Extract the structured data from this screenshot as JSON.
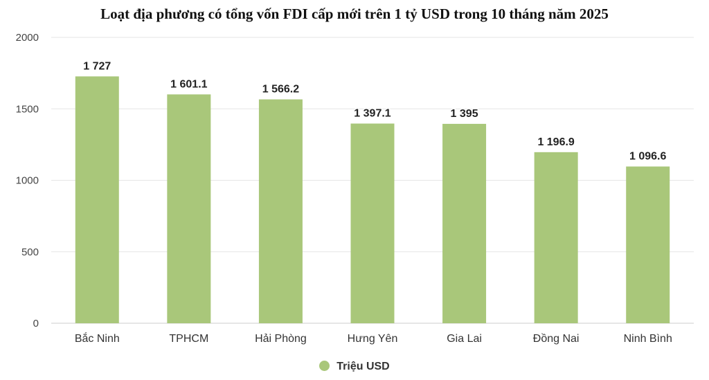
{
  "chart_data": {
    "type": "bar",
    "title": "Loạt địa phương có tổng vốn FDI cấp mới trên 1 tỷ USD trong 10 tháng năm 2025",
    "categories": [
      "Bắc Ninh",
      "TPHCM",
      "Hải Phòng",
      "Hưng Yên",
      "Gia Lai",
      "Đồng Nai",
      "Ninh Bình"
    ],
    "series": [
      {
        "name": "Triệu USD",
        "values": [
          1727,
          1601.1,
          1566.2,
          1397.1,
          1395,
          1196.9,
          1096.6
        ],
        "labels": [
          "1 727",
          "1 601.1",
          "1 566.2",
          "1 397.1",
          "1 395",
          "1 196.9",
          "1 096.6"
        ],
        "color": "#a9c77a"
      }
    ],
    "ylim": [
      0,
      2000
    ],
    "yticks": [
      "0",
      "500",
      "1000",
      "1500",
      "2000"
    ],
    "grid": true,
    "legend_position": "bottom"
  }
}
